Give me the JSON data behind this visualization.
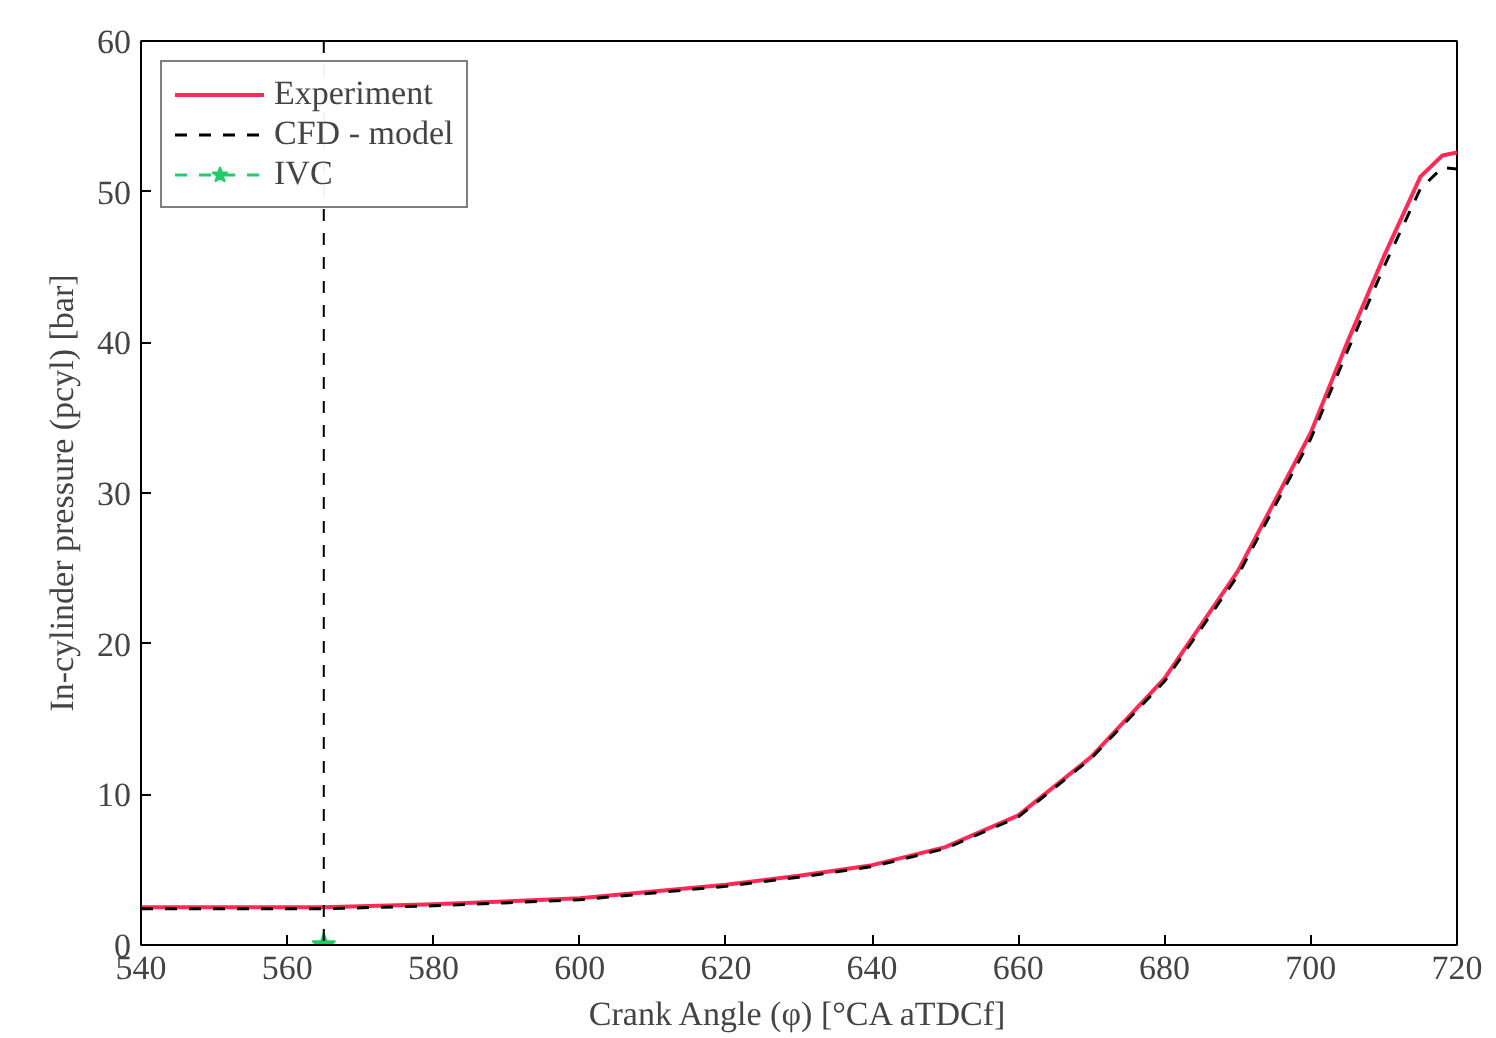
{
  "chart_data": {
    "type": "line",
    "xlabel": "Crank Angle (φ) [°CA aTDCf]",
    "ylabel": "In-cylinder pressure (pcyl) [bar]",
    "xlim": [
      540,
      720
    ],
    "xticks": [
      540,
      560,
      580,
      600,
      620,
      640,
      660,
      680,
      700,
      720
    ],
    "ylim": [
      0,
      60
    ],
    "yticks": [
      0,
      10,
      20,
      30,
      40,
      50,
      60
    ],
    "grid": false,
    "legend": "top left",
    "series": [
      {
        "name": "Experiment",
        "color": "#ff2a55",
        "line_style": "solid",
        "marker": "none",
        "x": [
          540,
          550,
          565,
          580,
          600,
          620,
          630,
          640,
          650,
          660,
          670,
          680,
          690,
          700,
          705,
          710,
          715,
          718,
          720
        ],
        "values": [
          2.5,
          2.5,
          2.5,
          2.7,
          3.1,
          4.0,
          4.6,
          5.3,
          6.5,
          8.6,
          12.5,
          17.7,
          24.8,
          34.0,
          40.0,
          45.7,
          51.0,
          52.4,
          52.6
        ]
      },
      {
        "name": "CFD - model",
        "color": "#000000",
        "line_style": "dashed",
        "marker": "none",
        "x": [
          540,
          550,
          565,
          580,
          600,
          620,
          630,
          640,
          650,
          660,
          670,
          680,
          690,
          700,
          705,
          710,
          715,
          718,
          720
        ],
        "values": [
          2.4,
          2.4,
          2.4,
          2.6,
          3.0,
          3.9,
          4.5,
          5.2,
          6.4,
          8.5,
          12.4,
          17.5,
          24.5,
          33.6,
          39.4,
          45.0,
          50.2,
          51.6,
          51.5
        ]
      },
      {
        "name": "IVC",
        "color": "#22cc66",
        "line_style": "dashed",
        "marker": "star",
        "x": [
          565
        ],
        "values": [
          0
        ]
      }
    ],
    "ref_lines": [
      {
        "axis": "x",
        "value": 565,
        "color": "#000000",
        "line_style": "dashed"
      }
    ]
  }
}
